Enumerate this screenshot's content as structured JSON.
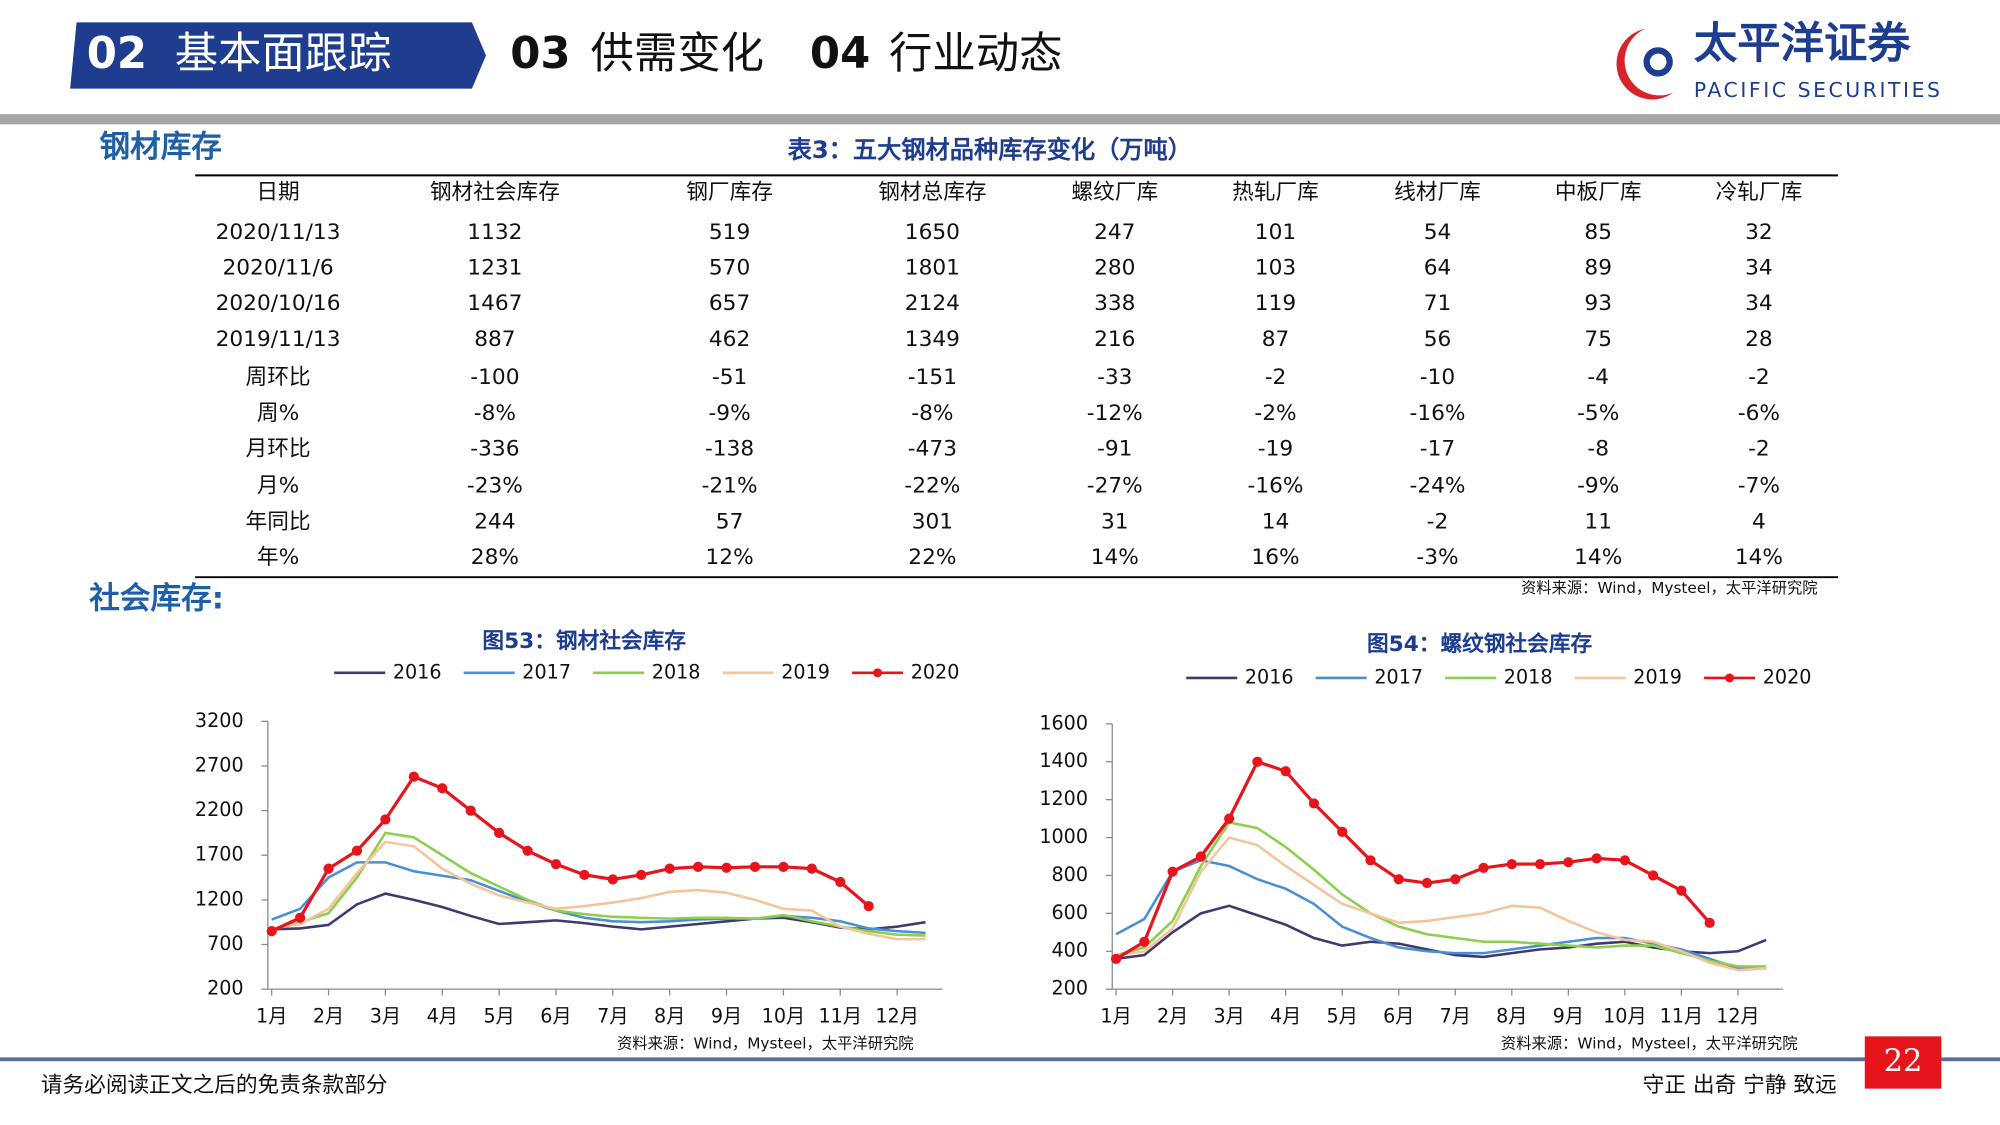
{
  "header": {
    "tab_active_num": "02",
    "tab_active": "基本面跟踪",
    "tab2_num": "03",
    "tab2": "供需变化",
    "tab3_num": "04",
    "tab3": "行业动态",
    "logo_cn": "太平洋证券",
    "logo_en": "PACIFIC SECURITIES"
  },
  "section1": "钢材库存",
  "table": {
    "title": "表3：五大钢材品种库存变化（万吨）",
    "columns": [
      "日期",
      "钢材社会库存",
      "钢厂库存",
      "钢材总库存",
      "螺纹厂库",
      "热轧厂库",
      "线材厂库",
      "中板厂库",
      "冷轧厂库"
    ],
    "rows": [
      [
        "2020/11/13",
        "1132",
        "519",
        "1650",
        "247",
        "101",
        "54",
        "85",
        "32"
      ],
      [
        "2020/11/6",
        "1231",
        "570",
        "1801",
        "280",
        "103",
        "64",
        "89",
        "34"
      ],
      [
        "2020/10/16",
        "1467",
        "657",
        "2124",
        "338",
        "119",
        "71",
        "93",
        "34"
      ],
      [
        "2019/11/13",
        "887",
        "462",
        "1349",
        "216",
        "87",
        "56",
        "75",
        "28"
      ],
      [
        "周环比",
        "-100",
        "-51",
        "-151",
        "-33",
        "-2",
        "-10",
        "-4",
        "-2"
      ],
      [
        "周%",
        "-8%",
        "-9%",
        "-8%",
        "-12%",
        "-2%",
        "-16%",
        "-5%",
        "-6%"
      ],
      [
        "月环比",
        "-336",
        "-138",
        "-473",
        "-91",
        "-19",
        "-17",
        "-8",
        "-2"
      ],
      [
        "月%",
        "-23%",
        "-21%",
        "-22%",
        "-27%",
        "-16%",
        "-24%",
        "-9%",
        "-7%"
      ],
      [
        "年同比",
        "244",
        "57",
        "301",
        "31",
        "14",
        "-2",
        "11",
        "4"
      ],
      [
        "年%",
        "28%",
        "12%",
        "22%",
        "14%",
        "16%",
        "-3%",
        "14%",
        "14%"
      ]
    ],
    "source": "资料来源：Wind，Mysteel，太平洋研究院"
  },
  "section2": "社会库存:",
  "chart_data": [
    {
      "type": "line",
      "title": "图53：钢材社会库存",
      "source": "资料来源：Wind，Mysteel，太平洋研究院",
      "x": [
        1,
        1.5,
        2,
        2.5,
        3,
        3.5,
        4,
        4.5,
        5,
        5.5,
        6,
        6.5,
        7,
        7.5,
        8,
        8.5,
        9,
        9.5,
        10,
        10.5,
        11,
        11.5,
        12,
        12.5
      ],
      "xlim": [
        1,
        12.8
      ],
      "xticks": [
        {
          "value": 1,
          "label": "1月"
        },
        {
          "value": 2,
          "label": "2月"
        },
        {
          "value": 3,
          "label": "3月"
        },
        {
          "value": 4,
          "label": "4月"
        },
        {
          "value": 5,
          "label": "5月"
        },
        {
          "value": 6,
          "label": "6月"
        },
        {
          "value": 7,
          "label": "7月"
        },
        {
          "value": 8,
          "label": "8月"
        },
        {
          "value": 9,
          "label": "9月"
        },
        {
          "value": 10,
          "label": "10月"
        },
        {
          "value": 11,
          "label": "11月"
        },
        {
          "value": 12,
          "label": "12月"
        }
      ],
      "ylim": [
        200,
        3200
      ],
      "yticks": [
        200,
        700,
        1200,
        1700,
        2200,
        2700,
        3200
      ],
      "series": [
        {
          "name": "2016",
          "color": "#3f3a6e",
          "values": [
            870,
            880,
            920,
            1150,
            1270,
            1200,
            1120,
            1020,
            930,
            950,
            970,
            940,
            900,
            870,
            900,
            930,
            960,
            990,
            1000,
            950,
            890,
            870,
            900,
            950
          ]
        },
        {
          "name": "2017",
          "color": "#4a8fd6",
          "values": [
            980,
            1100,
            1450,
            1620,
            1620,
            1520,
            1470,
            1420,
            1300,
            1180,
            1080,
            1000,
            960,
            950,
            960,
            980,
            990,
            990,
            1020,
            1000,
            960,
            880,
            850,
            830
          ]
        },
        {
          "name": "2018",
          "color": "#8ccf4d",
          "values": [
            870,
            950,
            1050,
            1450,
            1950,
            1900,
            1700,
            1500,
            1350,
            1200,
            1080,
            1040,
            1010,
            1000,
            990,
            1000,
            1000,
            990,
            1030,
            960,
            900,
            850,
            810,
            800
          ]
        },
        {
          "name": "2019",
          "color": "#f5c49a",
          "values": [
            880,
            930,
            1100,
            1500,
            1850,
            1800,
            1550,
            1380,
            1250,
            1170,
            1100,
            1130,
            1170,
            1220,
            1290,
            1310,
            1280,
            1200,
            1100,
            1080,
            900,
            820,
            760,
            760
          ]
        },
        {
          "name": "2020",
          "color": "#e8141c",
          "marker": "circle",
          "values": [
            850,
            1000,
            1550,
            1750,
            2100,
            2580,
            2450,
            2200,
            1950,
            1750,
            1600,
            1480,
            1430,
            1480,
            1550,
            1570,
            1560,
            1570,
            1570,
            1550,
            1400,
            1130,
            null,
            null
          ]
        }
      ]
    },
    {
      "type": "line",
      "title": "图54：螺纹钢社会库存",
      "source": "资料来源：Wind，Mysteel，太平洋研究院",
      "x": [
        1,
        1.5,
        2,
        2.5,
        3,
        3.5,
        4,
        4.5,
        5,
        5.5,
        6,
        6.5,
        7,
        7.5,
        8,
        8.5,
        9,
        9.5,
        10,
        10.5,
        11,
        11.5,
        12,
        12.5
      ],
      "xlim": [
        1,
        12.8
      ],
      "xticks": [
        {
          "value": 1,
          "label": "1月"
        },
        {
          "value": 2,
          "label": "2月"
        },
        {
          "value": 3,
          "label": "3月"
        },
        {
          "value": 4,
          "label": "4月"
        },
        {
          "value": 5,
          "label": "5月"
        },
        {
          "value": 6,
          "label": "6月"
        },
        {
          "value": 7,
          "label": "7月"
        },
        {
          "value": 8,
          "label": "8月"
        },
        {
          "value": 9,
          "label": "9月"
        },
        {
          "value": 10,
          "label": "10月"
        },
        {
          "value": 11,
          "label": "11月"
        },
        {
          "value": 12,
          "label": "12月"
        }
      ],
      "ylim": [
        200,
        1600
      ],
      "yticks": [
        200,
        400,
        600,
        800,
        1000,
        1200,
        1400,
        1600
      ],
      "series": [
        {
          "name": "2016",
          "color": "#3f3a6e",
          "values": [
            360,
            380,
            500,
            600,
            640,
            590,
            540,
            470,
            430,
            450,
            440,
            410,
            380,
            370,
            390,
            410,
            420,
            440,
            450,
            420,
            400,
            390,
            400,
            460
          ]
        },
        {
          "name": "2017",
          "color": "#4a8fd6",
          "values": [
            490,
            570,
            820,
            880,
            850,
            780,
            730,
            650,
            530,
            470,
            420,
            400,
            390,
            390,
            410,
            430,
            450,
            470,
            470,
            440,
            410,
            360,
            310,
            310
          ]
        },
        {
          "name": "2018",
          "color": "#8ccf4d",
          "values": [
            380,
            420,
            560,
            850,
            1080,
            1050,
            950,
            830,
            700,
            600,
            530,
            490,
            470,
            450,
            450,
            440,
            430,
            420,
            430,
            430,
            390,
            350,
            320,
            320
          ]
        },
        {
          "name": "2019",
          "color": "#f5c49a",
          "values": [
            380,
            400,
            520,
            820,
            1000,
            960,
            850,
            750,
            650,
            600,
            550,
            560,
            580,
            600,
            640,
            630,
            560,
            500,
            460,
            450,
            400,
            340,
            300,
            310
          ]
        },
        {
          "name": "2020",
          "color": "#e8141c",
          "marker": "circle",
          "values": [
            360,
            450,
            820,
            900,
            1100,
            1400,
            1350,
            1180,
            1030,
            880,
            780,
            760,
            780,
            840,
            860,
            860,
            870,
            890,
            880,
            800,
            720,
            550,
            null,
            null
          ]
        }
      ]
    }
  ],
  "footer": {
    "disclaimer": "请务必阅读正文之后的免责条款部分",
    "motto": "守正 出奇 宁静 致远",
    "page": "22"
  }
}
